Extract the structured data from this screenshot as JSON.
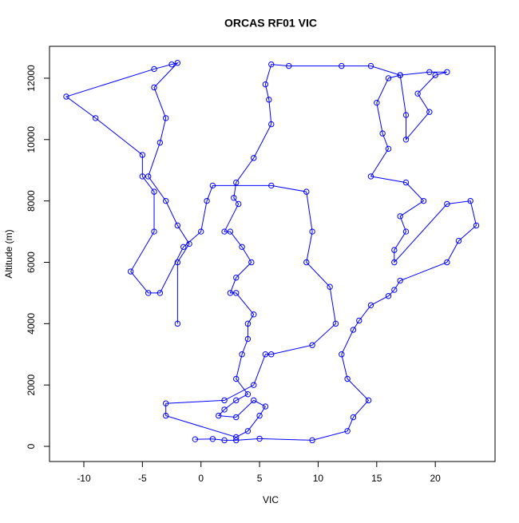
{
  "chart_data": {
    "type": "line",
    "title": "ORCAS RF01 VIC",
    "xlabel": "VIC",
    "ylabel": "Altitude (m)",
    "xlim": [
      -12.93,
      25.1
    ],
    "ylim": [
      -494,
      13040
    ],
    "xticks": [
      -10,
      -5,
      0,
      5,
      10,
      15,
      20
    ],
    "yticks": [
      0,
      2000,
      4000,
      6000,
      8000,
      10000,
      12000
    ],
    "marker": "circle",
    "series": [
      {
        "color": "#0000ff",
        "x": [
          -0.5,
          1,
          2,
          3,
          5,
          9.5,
          12.5,
          13,
          14.3,
          12.5,
          12,
          13,
          13.5,
          14.5,
          16,
          16.5,
          17,
          21,
          22,
          23.5,
          23,
          21,
          16.5,
          16.5,
          17.5,
          17,
          19,
          17.5,
          14.5,
          16,
          15.5,
          15,
          16,
          17,
          19.5,
          21,
          20,
          18.5,
          19.5,
          17.5,
          17.5,
          17,
          14.5,
          12,
          7.5,
          6,
          5.5,
          5.8,
          6,
          4.5,
          3,
          2.8,
          3.2,
          2,
          2.5,
          3.5,
          4.3,
          3,
          2.5,
          3,
          4.5,
          4,
          4,
          3.5,
          3,
          4,
          3,
          2,
          1.5,
          3,
          4.5,
          5.5,
          5,
          4,
          3,
          -3,
          -3,
          2,
          4.5,
          5.5,
          6,
          9.5,
          11.5,
          11,
          9,
          9.5,
          9,
          6,
          1,
          0.5,
          0,
          -1.5,
          -3.5,
          -4.5,
          -6,
          -4,
          -4,
          -5,
          -5,
          -9,
          -11.5,
          -4,
          -2.5,
          -2,
          -4,
          -3,
          -3.5,
          -4.5,
          -3,
          -2,
          -1,
          -2,
          -2
        ],
        "values": [
          230,
          240,
          200,
          200,
          250,
          200,
          500,
          950,
          1500,
          2200,
          3000,
          3800,
          4100,
          4600,
          4900,
          5100,
          5400,
          6000,
          6700,
          7200,
          8000,
          7900,
          6000,
          6400,
          7000,
          7500,
          8000,
          8600,
          8800,
          9700,
          10200,
          11200,
          12000,
          12100,
          12200,
          12200,
          12100,
          11500,
          10900,
          10000,
          10800,
          12100,
          12400,
          12400,
          12400,
          12450,
          11800,
          11300,
          10500,
          9400,
          8600,
          8100,
          7900,
          7000,
          7000,
          6500,
          6000,
          5500,
          5000,
          5000,
          4300,
          4000,
          3500,
          3000,
          2200,
          1700,
          1500,
          1200,
          1000,
          950,
          1500,
          1300,
          1000,
          500,
          300,
          1000,
          1400,
          1500,
          2000,
          3000,
          3000,
          3300,
          4000,
          5200,
          6000,
          7000,
          8300,
          8500,
          8500,
          8000,
          7000,
          6500,
          5000,
          5000,
          5700,
          7000,
          8300,
          8800,
          9500,
          10700,
          11400,
          12300,
          12450,
          12500,
          11700,
          10700,
          9900,
          8800,
          8000,
          7200,
          6600,
          6000,
          4000
        ]
      }
    ]
  }
}
